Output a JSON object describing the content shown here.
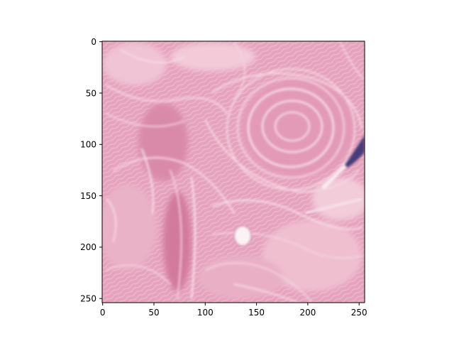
{
  "figure": {
    "x_ticks": [
      "0",
      "50",
      "100",
      "150",
      "200",
      "250"
    ],
    "y_ticks": [
      "0",
      "50",
      "100",
      "150",
      "200",
      "250"
    ]
  },
  "image": {
    "description_colors": {
      "background": "#e8a8c0",
      "fiber_light": "#f4d0dc",
      "fiber_dark": "#d47ea0",
      "nucleus": "#4a3a78",
      "frame": "#000000"
    }
  }
}
